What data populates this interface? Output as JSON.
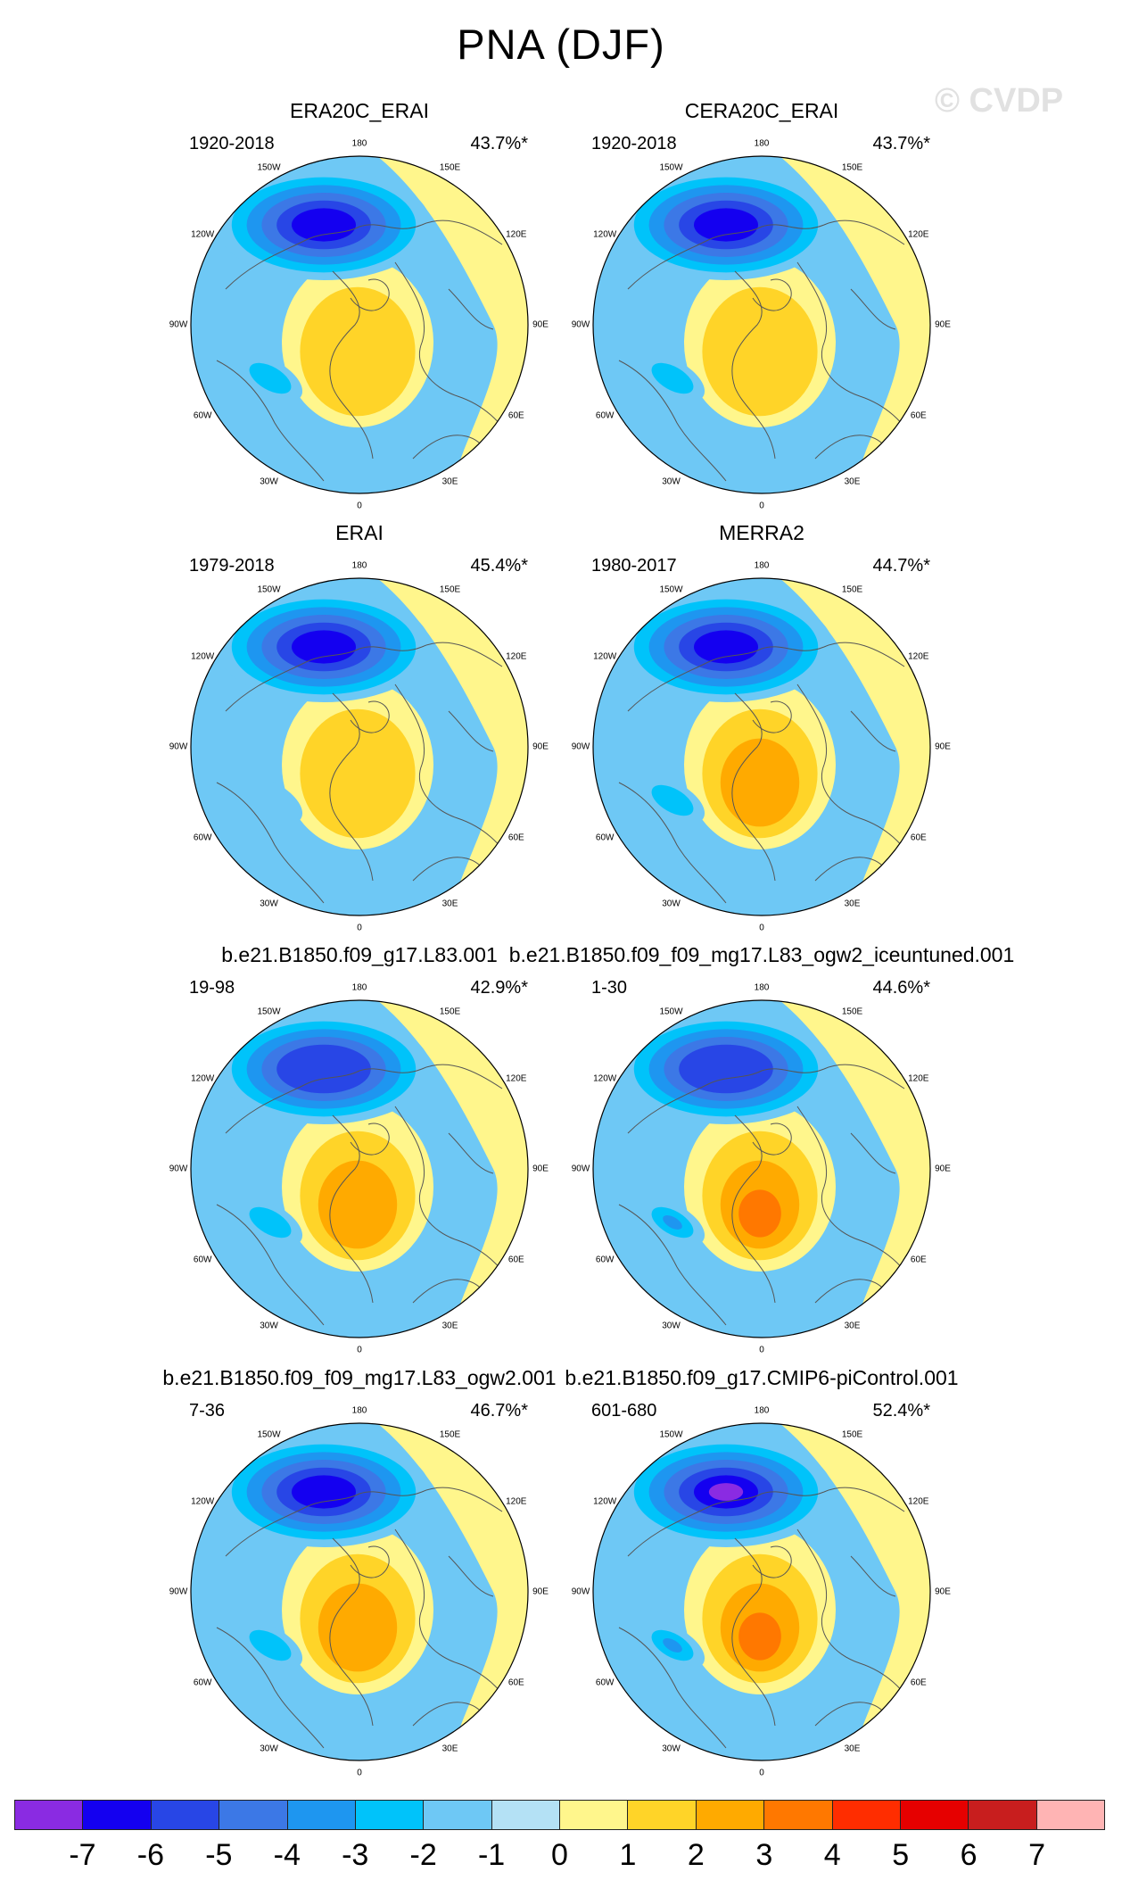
{
  "figure": {
    "title": "PNA (DJF)",
    "watermark": "© CVDP"
  },
  "longitude_labels": [
    "180",
    "150E",
    "120E",
    "90E",
    "60E",
    "30E",
    "0",
    "30W",
    "60W",
    "90W",
    "120W",
    "150W"
  ],
  "panels": [
    {
      "title": "ERA20C_ERAI",
      "period": "1920-2018",
      "variance": "43.7%*",
      "low_level": 6,
      "high_level": 2,
      "low2": 2
    },
    {
      "title": "CERA20C_ERAI",
      "period": "1920-2018",
      "variance": "43.7%*",
      "low_level": 6,
      "high_level": 2,
      "low2": 2
    },
    {
      "title": "ERAI",
      "period": "1979-2018",
      "variance": "45.4%*",
      "low_level": 6,
      "high_level": 2,
      "low2": 1
    },
    {
      "title": "MERRA2",
      "period": "1980-2017",
      "variance": "44.7%*",
      "low_level": 6,
      "high_level": 3,
      "low2": 2
    },
    {
      "title": "b.e21.B1850.f09_g17.L83.001",
      "period": "19-98",
      "variance": "42.9%*",
      "low_level": 5,
      "high_level": 3,
      "low2": 2
    },
    {
      "title": "b.e21.B1850.f09_f09_mg17.L83_ogw2_iceuntuned.001",
      "period": "1-30",
      "variance": "44.6%*",
      "low_level": 5,
      "high_level": 4,
      "low2": 3
    },
    {
      "title": "b.e21.B1850.f09_f09_mg17.L83_ogw2.001",
      "period": "7-36",
      "variance": "46.7%*",
      "low_level": 6,
      "high_level": 3,
      "low2": 2
    },
    {
      "title": "b.e21.B1850.f09_g17.CMIP6-piControl.001",
      "period": "601-680",
      "variance": "52.4%*",
      "low_level": 7,
      "high_level": 4,
      "low2": 3
    }
  ],
  "colorbar": {
    "labels": [
      "-7",
      "-6",
      "-5",
      "-4",
      "-3",
      "-2",
      "-1",
      "0",
      "1",
      "2",
      "3",
      "4",
      "5",
      "6",
      "7"
    ],
    "colors": [
      "#8a2be2",
      "#1400f0",
      "#2846e6",
      "#3c78e6",
      "#1e96f0",
      "#00c3fa",
      "#6ec8f5",
      "#b4e1f5",
      "#fff68c",
      "#ffd428",
      "#ffaa00",
      "#ff7800",
      "#ff2d00",
      "#e60000",
      "#c81e1e",
      "#ffb4b4"
    ]
  }
}
